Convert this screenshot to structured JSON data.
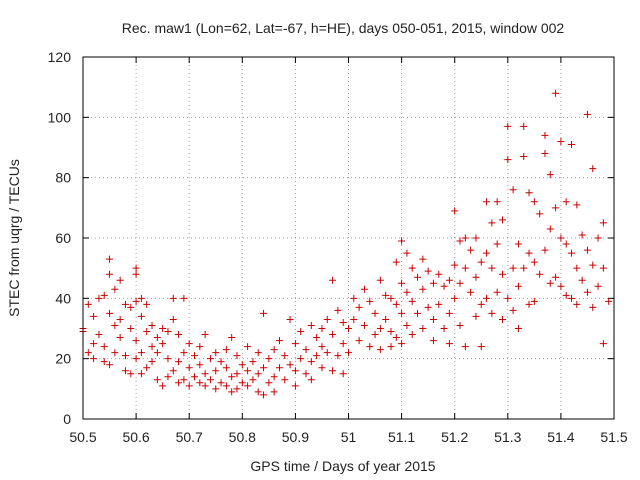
{
  "chart_data": {
    "type": "scatter",
    "title": "Rec. maw1 (Lon=62, Lat=-67, h=HE), days 050-051, 2015, window 002",
    "xlabel": "GPS time / Days of year 2015",
    "ylabel": "STEC from uqrg / TECUs",
    "xlim": [
      50.5,
      51.5
    ],
    "ylim": [
      0,
      120
    ],
    "x_ticks": [
      "50.5",
      "50.6",
      "50.7",
      "50.8",
      "50.9",
      "51",
      "51.1",
      "51.2",
      "51.3",
      "51.4",
      "51.5"
    ],
    "y_ticks": [
      "0",
      "20",
      "40",
      "60",
      "80",
      "100",
      "120"
    ],
    "grid": true,
    "legend": "none",
    "marker": "+",
    "color": "#cc0000",
    "points": [
      [
        50.5,
        30
      ],
      [
        50.5,
        29
      ],
      [
        50.51,
        22
      ],
      [
        50.51,
        38
      ],
      [
        50.52,
        34
      ],
      [
        50.52,
        25
      ],
      [
        50.52,
        20
      ],
      [
        50.53,
        28
      ],
      [
        50.53,
        40
      ],
      [
        50.54,
        41
      ],
      [
        50.54,
        24
      ],
      [
        50.54,
        19
      ],
      [
        50.55,
        53
      ],
      [
        50.55,
        48
      ],
      [
        50.55,
        35
      ],
      [
        50.55,
        18
      ],
      [
        50.56,
        43
      ],
      [
        50.56,
        31
      ],
      [
        50.56,
        22
      ],
      [
        50.57,
        46
      ],
      [
        50.57,
        33
      ],
      [
        50.57,
        27
      ],
      [
        50.58,
        38
      ],
      [
        50.58,
        21
      ],
      [
        50.58,
        16
      ],
      [
        50.59,
        37
      ],
      [
        50.59,
        30
      ],
      [
        50.59,
        15
      ],
      [
        50.6,
        50
      ],
      [
        50.6,
        48
      ],
      [
        50.6,
        39
      ],
      [
        50.6,
        26
      ],
      [
        50.6,
        20
      ],
      [
        50.61,
        40
      ],
      [
        50.61,
        34
      ],
      [
        50.61,
        22
      ],
      [
        50.61,
        15
      ],
      [
        50.62,
        38
      ],
      [
        50.62,
        29
      ],
      [
        50.62,
        17
      ],
      [
        50.63,
        31
      ],
      [
        50.63,
        24
      ],
      [
        50.63,
        19
      ],
      [
        50.64,
        27
      ],
      [
        50.64,
        22
      ],
      [
        50.64,
        13
      ],
      [
        50.65,
        30
      ],
      [
        50.65,
        25
      ],
      [
        50.65,
        11
      ],
      [
        50.66,
        29
      ],
      [
        50.66,
        20
      ],
      [
        50.66,
        14
      ],
      [
        50.67,
        40
      ],
      [
        50.67,
        33
      ],
      [
        50.67,
        16
      ],
      [
        50.68,
        28
      ],
      [
        50.68,
        19
      ],
      [
        50.68,
        12
      ],
      [
        50.69,
        40
      ],
      [
        50.69,
        22
      ],
      [
        50.69,
        13
      ],
      [
        50.7,
        25
      ],
      [
        50.7,
        17
      ],
      [
        50.7,
        11
      ],
      [
        50.71,
        21
      ],
      [
        50.71,
        14
      ],
      [
        50.72,
        24
      ],
      [
        50.72,
        18
      ],
      [
        50.72,
        12
      ],
      [
        50.73,
        28
      ],
      [
        50.73,
        15
      ],
      [
        50.73,
        11
      ],
      [
        50.74,
        20
      ],
      [
        50.74,
        13
      ],
      [
        50.75,
        22
      ],
      [
        50.75,
        16
      ],
      [
        50.75,
        10
      ],
      [
        50.76,
        19
      ],
      [
        50.76,
        12
      ],
      [
        50.77,
        23
      ],
      [
        50.77,
        17
      ],
      [
        50.77,
        11
      ],
      [
        50.78,
        27
      ],
      [
        50.78,
        14
      ],
      [
        50.78,
        9
      ],
      [
        50.79,
        21
      ],
      [
        50.79,
        15
      ],
      [
        50.79,
        10
      ],
      [
        50.8,
        18
      ],
      [
        50.8,
        12
      ],
      [
        50.81,
        24
      ],
      [
        50.81,
        16
      ],
      [
        50.81,
        11
      ],
      [
        50.82,
        19
      ],
      [
        50.82,
        13
      ],
      [
        50.83,
        22
      ],
      [
        50.83,
        15
      ],
      [
        50.83,
        9
      ],
      [
        50.84,
        35
      ],
      [
        50.84,
        17
      ],
      [
        50.84,
        8
      ],
      [
        50.85,
        20
      ],
      [
        50.85,
        12
      ],
      [
        50.86,
        23
      ],
      [
        50.86,
        14
      ],
      [
        50.86,
        9
      ],
      [
        50.87,
        26
      ],
      [
        50.87,
        17
      ],
      [
        50.88,
        21
      ],
      [
        50.88,
        13
      ],
      [
        50.89,
        33
      ],
      [
        50.89,
        18
      ],
      [
        50.9,
        25
      ],
      [
        50.9,
        16
      ],
      [
        50.9,
        11
      ],
      [
        50.91,
        29
      ],
      [
        50.91,
        20
      ],
      [
        50.92,
        23
      ],
      [
        50.92,
        15
      ],
      [
        50.93,
        31
      ],
      [
        50.93,
        19
      ],
      [
        50.93,
        13
      ],
      [
        50.94,
        27
      ],
      [
        50.94,
        21
      ],
      [
        50.95,
        30
      ],
      [
        50.95,
        24
      ],
      [
        50.95,
        17
      ],
      [
        50.96,
        33
      ],
      [
        50.96,
        22
      ],
      [
        50.97,
        46
      ],
      [
        50.97,
        28
      ],
      [
        50.97,
        16
      ],
      [
        50.98,
        36
      ],
      [
        50.98,
        21
      ],
      [
        50.99,
        32
      ],
      [
        50.99,
        25
      ],
      [
        50.99,
        15
      ],
      [
        51.0,
        30
      ],
      [
        51.0,
        22
      ],
      [
        51.01,
        40
      ],
      [
        51.01,
        33
      ],
      [
        51.02,
        37
      ],
      [
        51.02,
        26
      ],
      [
        51.03,
        43
      ],
      [
        51.03,
        31
      ],
      [
        51.04,
        39
      ],
      [
        51.04,
        24
      ],
      [
        51.05,
        35
      ],
      [
        51.05,
        28
      ],
      [
        51.06,
        46
      ],
      [
        51.06,
        30
      ],
      [
        51.06,
        23
      ],
      [
        51.07,
        41
      ],
      [
        51.07,
        33
      ],
      [
        51.08,
        40
      ],
      [
        51.08,
        29
      ],
      [
        51.08,
        24
      ],
      [
        51.09,
        52
      ],
      [
        51.09,
        38
      ],
      [
        51.09,
        27
      ],
      [
        51.1,
        59
      ],
      [
        51.1,
        45
      ],
      [
        51.1,
        35
      ],
      [
        51.1,
        25
      ],
      [
        51.11,
        55
      ],
      [
        51.11,
        42
      ],
      [
        51.11,
        31
      ],
      [
        51.12,
        50
      ],
      [
        51.12,
        39
      ],
      [
        51.12,
        28
      ],
      [
        51.13,
        47
      ],
      [
        51.13,
        35
      ],
      [
        51.14,
        53
      ],
      [
        51.14,
        43
      ],
      [
        51.14,
        30
      ],
      [
        51.15,
        49
      ],
      [
        51.15,
        37
      ],
      [
        51.16,
        45
      ],
      [
        51.16,
        33
      ],
      [
        51.16,
        26
      ],
      [
        51.17,
        48
      ],
      [
        51.17,
        38
      ],
      [
        51.18,
        44
      ],
      [
        51.18,
        30
      ],
      [
        51.19,
        46
      ],
      [
        51.19,
        35
      ],
      [
        51.19,
        25
      ],
      [
        51.2,
        69
      ],
      [
        51.2,
        51
      ],
      [
        51.2,
        40
      ],
      [
        51.21,
        59
      ],
      [
        51.21,
        45
      ],
      [
        51.21,
        31
      ],
      [
        51.22,
        60
      ],
      [
        51.22,
        50
      ],
      [
        51.22,
        24
      ],
      [
        51.23,
        56
      ],
      [
        51.23,
        42
      ],
      [
        51.24,
        60
      ],
      [
        51.24,
        47
      ],
      [
        51.24,
        34
      ],
      [
        51.25,
        52
      ],
      [
        51.25,
        38
      ],
      [
        51.25,
        24
      ],
      [
        51.26,
        72
      ],
      [
        51.26,
        55
      ],
      [
        51.26,
        40
      ],
      [
        51.27,
        65
      ],
      [
        51.27,
        50
      ],
      [
        51.27,
        35
      ],
      [
        51.28,
        72
      ],
      [
        51.28,
        58
      ],
      [
        51.28,
        42
      ],
      [
        51.29,
        66
      ],
      [
        51.29,
        48
      ],
      [
        51.29,
        33
      ],
      [
        51.3,
        97
      ],
      [
        51.3,
        86
      ],
      [
        51.3,
        40
      ],
      [
        51.31,
        76
      ],
      [
        51.31,
        50
      ],
      [
        51.31,
        36
      ],
      [
        51.32,
        58
      ],
      [
        51.32,
        44
      ],
      [
        51.32,
        30
      ],
      [
        51.33,
        97
      ],
      [
        51.33,
        87
      ],
      [
        51.33,
        50
      ],
      [
        51.34,
        75
      ],
      [
        51.34,
        55
      ],
      [
        51.34,
        38
      ],
      [
        51.35,
        72
      ],
      [
        51.35,
        52
      ],
      [
        51.35,
        39
      ],
      [
        51.36,
        68
      ],
      [
        51.36,
        48
      ],
      [
        51.37,
        94
      ],
      [
        51.37,
        88
      ],
      [
        51.37,
        56
      ],
      [
        51.38,
        81
      ],
      [
        51.38,
        63
      ],
      [
        51.38,
        45
      ],
      [
        51.39,
        108
      ],
      [
        51.39,
        70
      ],
      [
        51.39,
        47
      ],
      [
        51.4,
        92
      ],
      [
        51.4,
        60
      ],
      [
        51.4,
        44
      ],
      [
        51.41,
        72
      ],
      [
        51.41,
        58
      ],
      [
        51.41,
        41
      ],
      [
        51.42,
        91
      ],
      [
        51.42,
        55
      ],
      [
        51.42,
        40
      ],
      [
        51.43,
        71
      ],
      [
        51.43,
        50
      ],
      [
        51.43,
        38
      ],
      [
        51.44,
        61
      ],
      [
        51.44,
        46
      ],
      [
        51.45,
        101
      ],
      [
        51.45,
        56
      ],
      [
        51.45,
        42
      ],
      [
        51.46,
        83
      ],
      [
        51.46,
        51
      ],
      [
        51.46,
        37
      ],
      [
        51.47,
        60
      ],
      [
        51.47,
        44
      ],
      [
        51.48,
        65
      ],
      [
        51.48,
        50
      ],
      [
        51.48,
        25
      ],
      [
        51.49,
        39
      ]
    ]
  }
}
